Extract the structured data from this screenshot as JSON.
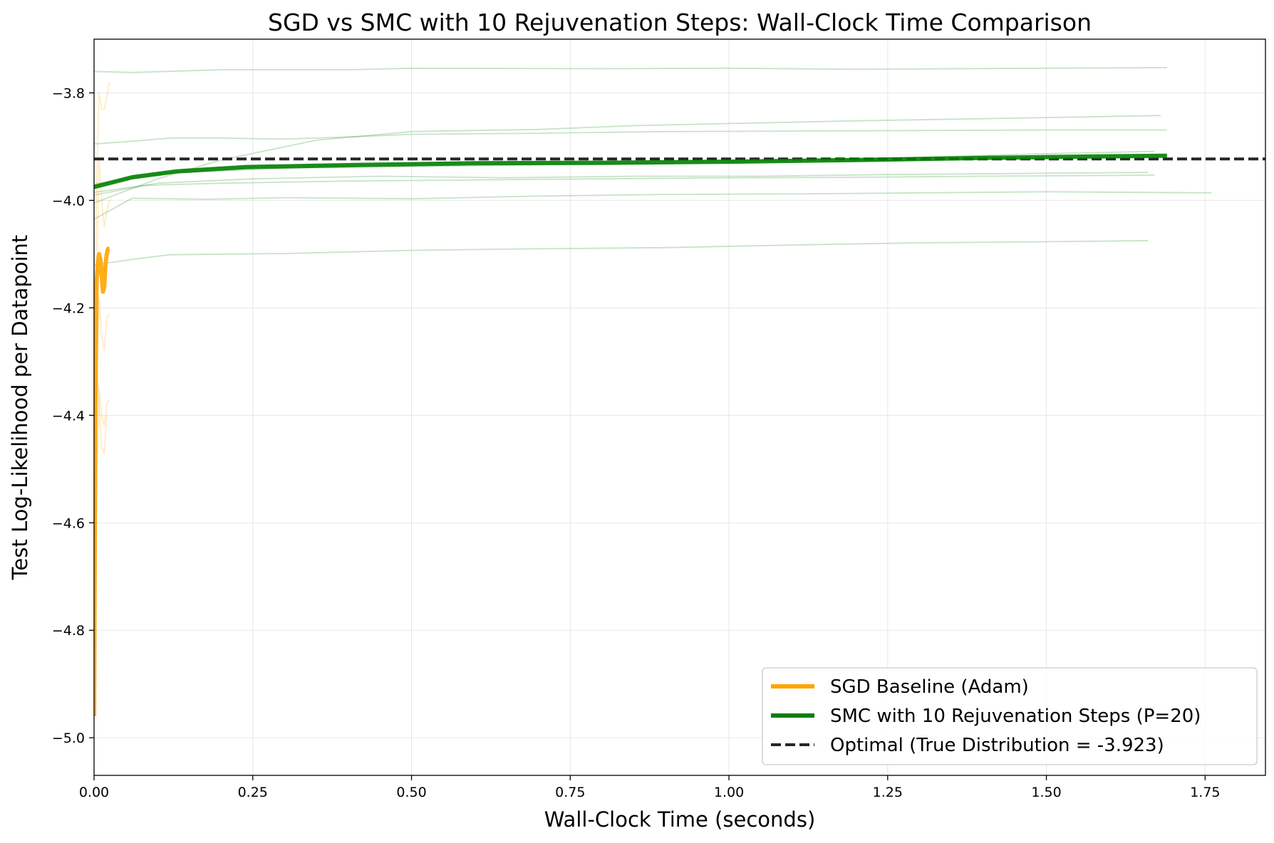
{
  "chart_data": {
    "type": "line",
    "title": "SGD vs SMC with 10 Rejuvenation Steps: Wall-Clock Time Comparison",
    "xlabel": "Wall-Clock Time (seconds)",
    "ylabel": "Test Log-Likelihood per Datapoint",
    "xlim": [
      0.0,
      1.845
    ],
    "ylim": [
      -5.07,
      -3.7
    ],
    "xticks": [
      0.0,
      0.25,
      0.5,
      0.75,
      1.0,
      1.25,
      1.5,
      1.75
    ],
    "xtick_labels": [
      "0.00",
      "0.25",
      "0.50",
      "0.75",
      "1.00",
      "1.25",
      "1.50",
      "1.75"
    ],
    "yticks": [
      -5.0,
      -4.8,
      -4.6,
      -4.4,
      -4.2,
      -4.0,
      -3.8
    ],
    "ytick_labels": [
      "−5.0",
      "−4.8",
      "−4.6",
      "−4.4",
      "−4.2",
      "−4.0",
      "−3.8"
    ],
    "grid": true,
    "legend_position": "lower-right",
    "colors": {
      "sgd": "#FFA500",
      "smc": "#008000",
      "optimal": "#262626"
    },
    "series": [
      {
        "name": "SGD Baseline (Adam)",
        "role": "sgd-mean",
        "x": [
          0.0,
          0.002,
          0.004,
          0.006,
          0.008,
          0.01,
          0.012,
          0.014,
          0.016,
          0.018,
          0.02,
          0.022,
          0.024
        ],
        "y": [
          -4.96,
          -4.4,
          -4.15,
          -4.12,
          -4.1,
          -4.11,
          -4.14,
          -4.17,
          -4.16,
          -4.12,
          -4.1,
          -4.09,
          -4.09
        ]
      },
      {
        "name": "SMC with 10 Rejuvenation Steps (P=20)",
        "role": "smc-mean",
        "x": [
          0.0,
          0.06,
          0.13,
          0.24,
          0.42,
          0.6,
          0.8,
          1.0,
          1.2,
          1.4,
          1.6,
          1.69
        ],
        "y": [
          -3.975,
          -3.957,
          -3.946,
          -3.938,
          -3.934,
          -3.931,
          -3.93,
          -3.928,
          -3.925,
          -3.921,
          -3.918,
          -3.917
        ]
      },
      {
        "name": "Optimal (True Distribution = -3.923)",
        "role": "optimal",
        "y": -3.923
      }
    ],
    "individual_runs": {
      "smc": [
        {
          "x": [
            0.0,
            0.06,
            0.2,
            0.4,
            0.5,
            0.8,
            1.0,
            1.2,
            1.5,
            1.69
          ],
          "y": [
            -3.76,
            -3.762,
            -3.757,
            -3.757,
            -3.754,
            -3.755,
            -3.754,
            -3.756,
            -3.754,
            -3.753
          ]
        },
        {
          "x": [
            0.0,
            0.06,
            0.12,
            0.2,
            0.3,
            0.4,
            0.5,
            0.7,
            0.9,
            1.1,
            1.3,
            1.5,
            1.69
          ],
          "y": [
            -3.895,
            -3.89,
            -3.884,
            -3.884,
            -3.886,
            -3.882,
            -3.877,
            -3.875,
            -3.872,
            -3.871,
            -3.87,
            -3.869,
            -3.869
          ]
        },
        {
          "x": [
            0.0,
            0.1,
            0.2,
            0.35,
            0.5,
            0.7,
            0.85,
            1.0,
            1.2,
            1.4,
            1.55,
            1.68
          ],
          "y": [
            -4.005,
            -3.96,
            -3.925,
            -3.888,
            -3.872,
            -3.868,
            -3.861,
            -3.857,
            -3.852,
            -3.848,
            -3.845,
            -3.842
          ]
        },
        {
          "x": [
            0.0,
            0.1,
            0.3,
            0.5,
            0.7,
            0.9,
            1.1,
            1.3,
            1.5,
            1.67
          ],
          "y": [
            -3.97,
            -3.95,
            -3.94,
            -3.937,
            -3.934,
            -3.932,
            -3.926,
            -3.92,
            -3.913,
            -3.909
          ]
        },
        {
          "x": [
            0.0,
            0.08,
            0.2,
            0.4,
            0.6,
            0.8,
            1.0,
            1.2,
            1.4,
            1.67
          ],
          "y": [
            -3.985,
            -3.972,
            -3.968,
            -3.964,
            -3.962,
            -3.96,
            -3.958,
            -3.957,
            -3.955,
            -3.953
          ]
        },
        {
          "x": [
            0.0,
            0.1,
            0.25,
            0.45,
            0.65,
            0.85,
            1.05,
            1.25,
            1.45,
            1.66
          ],
          "y": [
            -3.99,
            -3.968,
            -3.96,
            -3.955,
            -3.958,
            -3.955,
            -3.955,
            -3.952,
            -3.95,
            -3.948
          ]
        },
        {
          "x": [
            0.0,
            0.06,
            0.18,
            0.3,
            0.5,
            0.7,
            0.9,
            1.1,
            1.3,
            1.5,
            1.76
          ],
          "y": [
            -4.035,
            -3.996,
            -3.998,
            -3.995,
            -3.997,
            -3.992,
            -3.989,
            -3.988,
            -3.986,
            -3.984,
            -3.986
          ]
        },
        {
          "x": [
            0.0,
            0.06,
            0.12,
            0.3,
            0.5,
            0.7,
            0.9,
            1.1,
            1.3,
            1.5,
            1.66
          ],
          "y": [
            -4.12,
            -4.11,
            -4.101,
            -4.099,
            -4.093,
            -4.09,
            -4.088,
            -4.083,
            -4.079,
            -4.077,
            -4.075
          ]
        }
      ],
      "sgd": [
        {
          "x": [
            0.0,
            0.004,
            0.008,
            0.012,
            0.016,
            0.02,
            0.024
          ],
          "y": [
            -4.45,
            -3.98,
            -3.8,
            -3.83,
            -3.83,
            -3.81,
            -3.78
          ]
        },
        {
          "x": [
            0.0,
            0.004,
            0.008,
            0.012,
            0.016,
            0.02,
            0.024
          ],
          "y": [
            -4.9,
            -4.2,
            -3.92,
            -4.0,
            -4.05,
            -4.02,
            -4.0
          ]
        },
        {
          "x": [
            0.0,
            0.004,
            0.008,
            0.012,
            0.016,
            0.02,
            0.024
          ],
          "y": [
            -4.95,
            -4.55,
            -4.35,
            -4.4,
            -4.42,
            -4.38,
            -4.37
          ]
        },
        {
          "x": [
            0.0,
            0.004,
            0.008,
            0.012,
            0.016,
            0.02,
            0.024
          ],
          "y": [
            -4.8,
            -4.3,
            -4.18,
            -4.25,
            -4.28,
            -4.22,
            -4.21
          ]
        },
        {
          "x": [
            0.0,
            0.004,
            0.008,
            0.012,
            0.016,
            0.02
          ],
          "y": [
            -4.7,
            -4.3,
            -4.38,
            -4.46,
            -4.47,
            -4.4
          ]
        }
      ]
    }
  }
}
